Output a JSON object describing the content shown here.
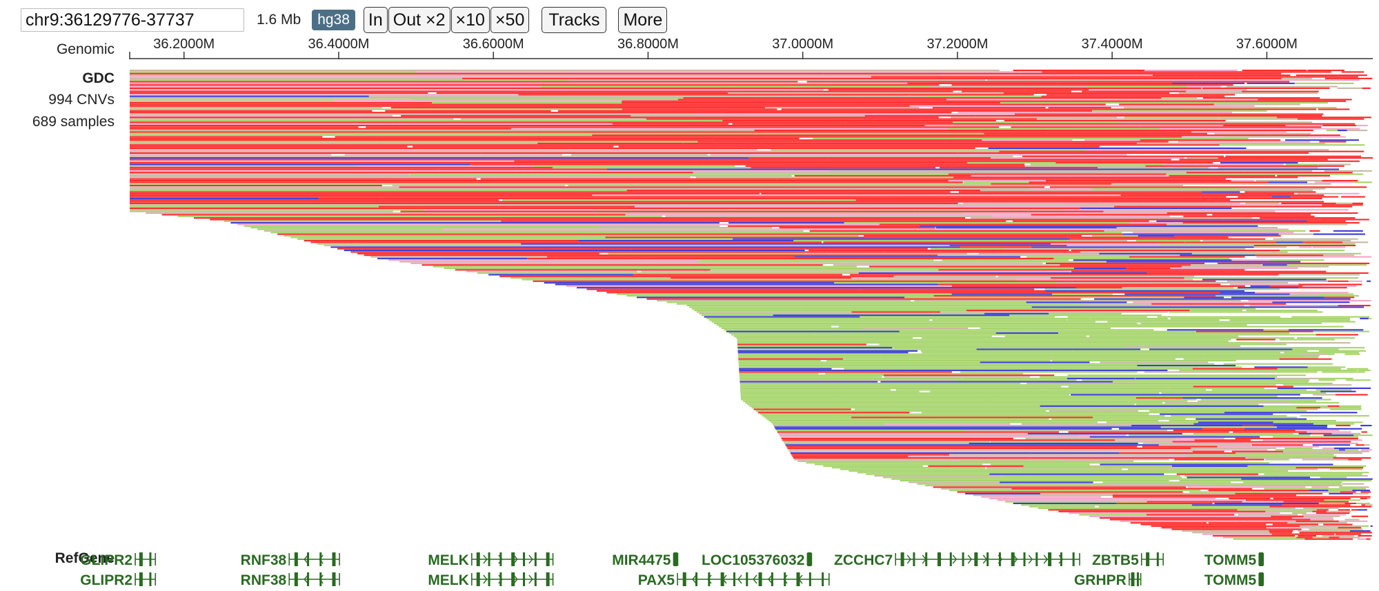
{
  "toolbar": {
    "coord_value": "chr9:36129776-37737",
    "span_text": "1.6 Mb",
    "genome": "hg38",
    "zoom_in_label": "In",
    "zoom_out2_label": "Out ×2",
    "zoom_out10_label": "×10",
    "zoom_out50_label": "×50",
    "tracks_label": "Tracks",
    "more_label": "More"
  },
  "ruler": {
    "label": "Genomic",
    "view_start": 36129776,
    "view_end": 37737000,
    "ticks": [
      {
        "pos": 36200000,
        "label": "36.2000M"
      },
      {
        "pos": 36400000,
        "label": "36.4000M"
      },
      {
        "pos": 36600000,
        "label": "36.6000M"
      },
      {
        "pos": 36800000,
        "label": "36.8000M"
      },
      {
        "pos": 37000000,
        "label": "37.0000M"
      },
      {
        "pos": 37200000,
        "label": "37.2000M"
      },
      {
        "pos": 37400000,
        "label": "37.4000M"
      },
      {
        "pos": 37600000,
        "label": "37.6000M"
      }
    ]
  },
  "gdc_track": {
    "name": "GDC",
    "cnv_count_text": "994 CNVs",
    "sample_count_text": "689 samples",
    "colors": {
      "amp_high": "#ff2a2a",
      "amp_low": "#f2a7c7",
      "loss_high": "#3b3bd6",
      "loss_low": "#a5d46a",
      "neutral": "#c9b7a3"
    },
    "profile": [
      {
        "f": 0.0,
        "start": 36129776,
        "color_mix": "amp"
      },
      {
        "f": 0.3,
        "start": 36129776,
        "color_mix": "amp"
      },
      {
        "f": 0.32,
        "start": 36250000,
        "color_mix": "mixed"
      },
      {
        "f": 0.4,
        "start": 36450000,
        "color_mix": "mixed"
      },
      {
        "f": 0.46,
        "start": 36700000,
        "color_mix": "mixed"
      },
      {
        "f": 0.5,
        "start": 36850000,
        "color_mix": "loss"
      },
      {
        "f": 0.57,
        "start": 36915000,
        "color_mix": "loss"
      },
      {
        "f": 0.7,
        "start": 36920000,
        "color_mix": "loss"
      },
      {
        "f": 0.75,
        "start": 36960000,
        "color_mix": "mixed"
      },
      {
        "f": 0.83,
        "start": 36990000,
        "color_mix": "loss"
      },
      {
        "f": 0.88,
        "start": 37150000,
        "color_mix": "mixed"
      },
      {
        "f": 0.93,
        "start": 37300000,
        "color_mix": "amp"
      },
      {
        "f": 1.0,
        "start": 37570000,
        "color_mix": "amp"
      }
    ]
  },
  "refgene": {
    "name": "RefGene",
    "row1": [
      {
        "name": "GLIPR2",
        "start": 36137000,
        "end": 36163000,
        "strand": "+"
      },
      {
        "name": "RNF38",
        "start": 36336000,
        "end": 36401000,
        "strand": "-"
      },
      {
        "name": "MELK",
        "start": 36572000,
        "end": 36677000,
        "strand": "+"
      },
      {
        "name": "MIR4475",
        "start": 36833000,
        "end": 36835000,
        "strand": "+"
      },
      {
        "name": "LOC105376032",
        "start": 37006000,
        "end": 37010000,
        "strand": "+"
      },
      {
        "name": "ZCCHC7",
        "start": 37120000,
        "end": 37358000,
        "strand": "+"
      },
      {
        "name": "ZBTB5",
        "start": 37438000,
        "end": 37466000,
        "strand": "-"
      },
      {
        "name": "TOMM5",
        "start": 37590000,
        "end": 37593000,
        "strand": "-"
      }
    ],
    "row2": [
      {
        "name": "GLIPR2",
        "start": 36137000,
        "end": 36163000,
        "strand": "+"
      },
      {
        "name": "RNF38",
        "start": 36336000,
        "end": 36401000,
        "strand": "-"
      },
      {
        "name": "MELK",
        "start": 36572000,
        "end": 36677000,
        "strand": "+"
      },
      {
        "name": "PAX5",
        "start": 36838000,
        "end": 37034000,
        "strand": "-"
      },
      {
        "name": "GRHPR",
        "start": 37422000,
        "end": 37437000,
        "strand": "+"
      },
      {
        "name": "TOMM5",
        "start": 37590000,
        "end": 37593000,
        "strand": "-"
      }
    ]
  }
}
